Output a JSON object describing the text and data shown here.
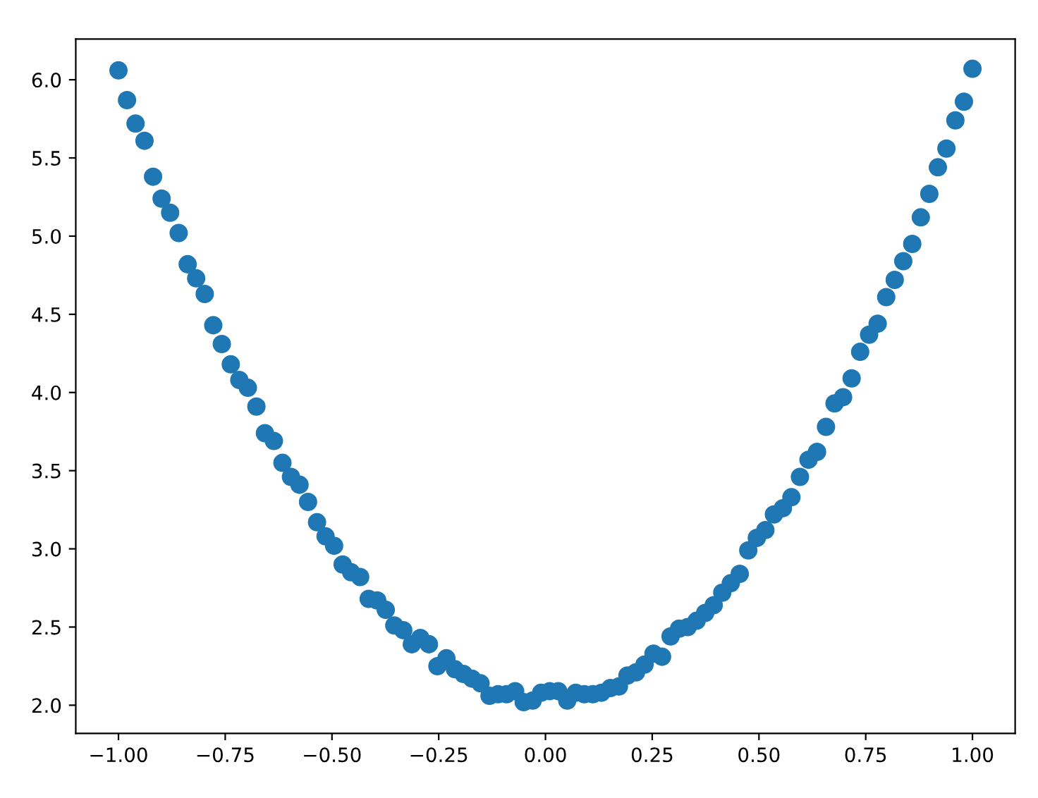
{
  "chart_data": {
    "type": "scatter",
    "marker": "circle",
    "grid": false,
    "legend": false,
    "x": [
      -1.0,
      -0.98,
      -0.96,
      -0.939,
      -0.919,
      -0.899,
      -0.879,
      -0.859,
      -0.838,
      -0.818,
      -0.798,
      -0.778,
      -0.758,
      -0.737,
      -0.717,
      -0.697,
      -0.677,
      -0.657,
      -0.636,
      -0.616,
      -0.596,
      -0.576,
      -0.556,
      -0.535,
      -0.515,
      -0.495,
      -0.475,
      -0.455,
      -0.434,
      -0.414,
      -0.394,
      -0.374,
      -0.354,
      -0.333,
      -0.313,
      -0.293,
      -0.273,
      -0.253,
      -0.232,
      -0.212,
      -0.192,
      -0.172,
      -0.152,
      -0.131,
      -0.111,
      -0.091,
      -0.071,
      -0.051,
      -0.03,
      -0.01,
      0.01,
      0.03,
      0.051,
      0.071,
      0.091,
      0.111,
      0.131,
      0.152,
      0.172,
      0.192,
      0.212,
      0.232,
      0.253,
      0.273,
      0.293,
      0.313,
      0.333,
      0.354,
      0.374,
      0.394,
      0.414,
      0.434,
      0.455,
      0.475,
      0.495,
      0.515,
      0.535,
      0.556,
      0.576,
      0.596,
      0.616,
      0.636,
      0.657,
      0.677,
      0.697,
      0.717,
      0.737,
      0.758,
      0.778,
      0.798,
      0.818,
      0.838,
      0.859,
      0.879,
      0.899,
      0.919,
      0.939,
      0.96,
      0.98,
      1.0
    ],
    "series": [
      {
        "color": "#1f77b4",
        "values": [
          6.06,
          5.87,
          5.72,
          5.61,
          5.38,
          5.24,
          5.15,
          5.02,
          4.82,
          4.73,
          4.63,
          4.43,
          4.31,
          4.18,
          4.08,
          4.03,
          3.91,
          3.74,
          3.69,
          3.55,
          3.46,
          3.41,
          3.3,
          3.17,
          3.08,
          3.02,
          2.9,
          2.85,
          2.82,
          2.68,
          2.67,
          2.61,
          2.51,
          2.48,
          2.39,
          2.43,
          2.39,
          2.25,
          2.3,
          2.23,
          2.2,
          2.17,
          2.14,
          2.06,
          2.07,
          2.07,
          2.09,
          2.02,
          2.03,
          2.08,
          2.09,
          2.09,
          2.03,
          2.08,
          2.07,
          2.07,
          2.08,
          2.11,
          2.12,
          2.19,
          2.21,
          2.26,
          2.33,
          2.31,
          2.44,
          2.49,
          2.5,
          2.54,
          2.59,
          2.64,
          2.72,
          2.78,
          2.84,
          2.99,
          3.07,
          3.12,
          3.22,
          3.26,
          3.33,
          3.46,
          3.57,
          3.62,
          3.78,
          3.93,
          3.97,
          4.09,
          4.26,
          4.37,
          4.44,
          4.61,
          4.72,
          4.84,
          4.95,
          5.12,
          5.27,
          5.44,
          5.56,
          5.74,
          5.86,
          6.07
        ]
      }
    ],
    "xlim": [
      -1.1,
      1.1
    ],
    "ylim": [
      1.82,
      6.26
    ],
    "xticks": [
      {
        "value": -1.0,
        "label": "−1.00"
      },
      {
        "value": -0.75,
        "label": "−0.75"
      },
      {
        "value": -0.5,
        "label": "−0.50"
      },
      {
        "value": -0.25,
        "label": "−0.25"
      },
      {
        "value": 0.0,
        "label": "0.00"
      },
      {
        "value": 0.25,
        "label": "0.25"
      },
      {
        "value": 0.5,
        "label": "0.50"
      },
      {
        "value": 0.75,
        "label": "0.75"
      },
      {
        "value": 1.0,
        "label": "1.00"
      }
    ],
    "yticks": [
      {
        "value": 2.0,
        "label": "2.0"
      },
      {
        "value": 2.5,
        "label": "2.5"
      },
      {
        "value": 3.0,
        "label": "3.0"
      },
      {
        "value": 3.5,
        "label": "3.5"
      },
      {
        "value": 4.0,
        "label": "4.0"
      },
      {
        "value": 4.5,
        "label": "4.5"
      },
      {
        "value": 5.0,
        "label": "5.0"
      },
      {
        "value": 5.5,
        "label": "5.5"
      },
      {
        "value": 6.0,
        "label": "6.0"
      }
    ]
  }
}
